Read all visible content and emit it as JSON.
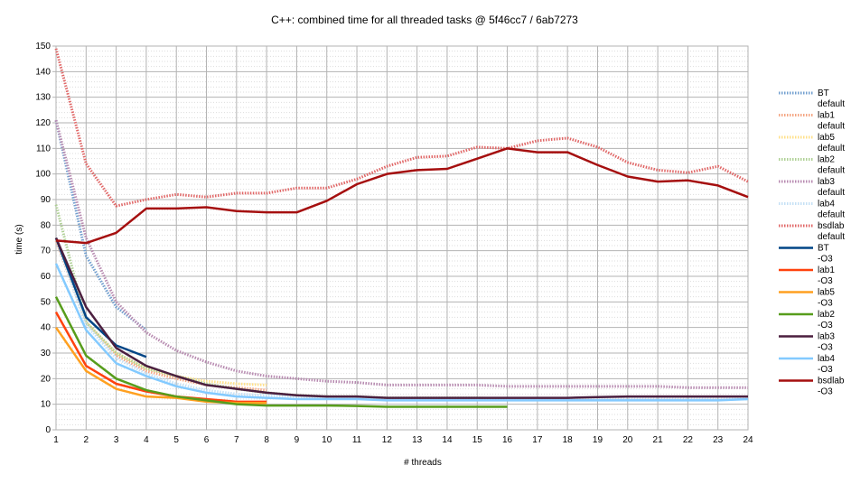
{
  "chart_data": {
    "type": "line",
    "title": "C++: combined time for all threaded tasks @ 5f46cc7 / 6ab7273",
    "x_label": "# threads",
    "y_label": "time (s)",
    "x": [
      1,
      2,
      3,
      4,
      5,
      6,
      7,
      8,
      9,
      10,
      11,
      12,
      13,
      14,
      15,
      16,
      17,
      18,
      19,
      20,
      21,
      22,
      23,
      24
    ],
    "xlim": [
      1,
      24
    ],
    "xticks": [
      1,
      2,
      3,
      4,
      5,
      6,
      7,
      8,
      9,
      10,
      11,
      12,
      13,
      14,
      15,
      16,
      17,
      18,
      19,
      20,
      21,
      22,
      23,
      24
    ],
    "ylim": [
      0,
      150
    ],
    "yticks": [
      0,
      10,
      20,
      30,
      40,
      50,
      60,
      70,
      80,
      90,
      100,
      110,
      120,
      130,
      140,
      150
    ],
    "grid": true,
    "legend": "right",
    "series": [
      {
        "name": "BT default",
        "color": "#729fcf",
        "style": "dotted",
        "values": [
          121,
          68,
          48,
          39,
          null,
          null,
          null,
          null,
          null,
          null,
          null,
          null,
          null,
          null,
          null,
          null,
          null,
          null,
          null,
          null,
          null,
          null,
          null,
          null
        ]
      },
      {
        "name": "lab1 default",
        "color": "#f4a582",
        "style": "dotted",
        "values": [
          74,
          42,
          29,
          23,
          20,
          17.5,
          16.5,
          15.5,
          null,
          null,
          null,
          null,
          null,
          null,
          null,
          null,
          null,
          null,
          null,
          null,
          null,
          null,
          null,
          null
        ]
      },
      {
        "name": "lab5 default",
        "color": "#ffe08a",
        "style": "dotted",
        "values": [
          75,
          42,
          30,
          24,
          21,
          19,
          18,
          17.5,
          null,
          null,
          null,
          null,
          null,
          null,
          null,
          null,
          null,
          null,
          null,
          null,
          null,
          null,
          null,
          null
        ]
      },
      {
        "name": "lab2 default",
        "color": "#afd095",
        "style": "dotted",
        "values": [
          88,
          42,
          30,
          24,
          21,
          18,
          16,
          14.5,
          13.5,
          13,
          13,
          12.5,
          12.5,
          12.5,
          12.5,
          12,
          null,
          null,
          null,
          null,
          null,
          null,
          null,
          null
        ]
      },
      {
        "name": "lab3 default",
        "color": "#b78ab0",
        "style": "dotted",
        "values": [
          121,
          75,
          50,
          38,
          31,
          26.5,
          23,
          21,
          20,
          19,
          18.5,
          17.5,
          17.5,
          17.5,
          17.5,
          17,
          17,
          17,
          17,
          17,
          17,
          16.5,
          16.5,
          16.5
        ]
      },
      {
        "name": "lab4 default",
        "color": "#c5e0f5",
        "style": "dotted",
        "values": [
          75,
          41,
          28,
          22,
          18,
          15.5,
          14,
          13.5,
          13,
          12.5,
          12.5,
          12,
          12,
          12,
          12,
          12,
          12,
          12,
          12,
          12,
          12,
          12,
          12,
          12
        ]
      },
      {
        "name": "bsdlab default",
        "color": "#e06666",
        "style": "dotted",
        "values": [
          149,
          104,
          87.5,
          90,
          92,
          91,
          92.5,
          92.5,
          94.5,
          94.5,
          98,
          103,
          106.5,
          107,
          110.5,
          110,
          113,
          114,
          110.5,
          104.5,
          101.5,
          100.5,
          103,
          97
        ]
      },
      {
        "name": "BT -O3",
        "color": "#004586",
        "style": "solid",
        "values": [
          75,
          44,
          33,
          28.5,
          null,
          null,
          null,
          null,
          null,
          null,
          null,
          null,
          null,
          null,
          null,
          null,
          null,
          null,
          null,
          null,
          null,
          null,
          null,
          null
        ]
      },
      {
        "name": "lab1 -O3",
        "color": "#ff420e",
        "style": "solid",
        "values": [
          46,
          25,
          18,
          15,
          13,
          12,
          11,
          11,
          null,
          null,
          null,
          null,
          null,
          null,
          null,
          null,
          null,
          null,
          null,
          null,
          null,
          null,
          null,
          null
        ]
      },
      {
        "name": "lab5 -O3",
        "color": "#ffa020",
        "style": "solid",
        "values": [
          40,
          23,
          16,
          13,
          12.5,
          11,
          10.5,
          10.5,
          null,
          null,
          null,
          null,
          null,
          null,
          null,
          null,
          null,
          null,
          null,
          null,
          null,
          null,
          null,
          null
        ]
      },
      {
        "name": "lab2 -O3",
        "color": "#579d1c",
        "style": "solid",
        "values": [
          52,
          29,
          20,
          15.5,
          13,
          11.5,
          10,
          9.5,
          9.5,
          9.5,
          9.3,
          9,
          9,
          9,
          9,
          9,
          null,
          null,
          null,
          null,
          null,
          null,
          null,
          null
        ]
      },
      {
        "name": "lab3 -O3",
        "color": "#4b1f3f",
        "style": "solid",
        "values": [
          75,
          48,
          32,
          25,
          21,
          17.5,
          16,
          14.5,
          13.5,
          13,
          13,
          12.5,
          12.5,
          12.5,
          12.5,
          12.5,
          12.5,
          12.5,
          12.8,
          13,
          13,
          13,
          13,
          13
        ]
      },
      {
        "name": "lab4 -O3",
        "color": "#83caff",
        "style": "solid",
        "values": [
          65,
          39,
          26,
          21,
          17,
          14.5,
          13,
          12.5,
          12,
          12,
          12,
          11.5,
          11.5,
          11.5,
          11.5,
          11.5,
          11.5,
          11.5,
          11.5,
          11.5,
          11.5,
          11.5,
          11.5,
          12
        ]
      },
      {
        "name": "bsdlab -O3",
        "color": "#a50f0f",
        "style": "solid",
        "values": [
          74,
          73,
          77,
          86.5,
          86.5,
          87,
          85.5,
          85,
          85,
          89.5,
          96,
          100,
          101.5,
          102,
          106,
          110,
          108.5,
          108.5,
          103.5,
          99,
          97,
          97.5,
          95.5,
          91
        ]
      }
    ]
  }
}
